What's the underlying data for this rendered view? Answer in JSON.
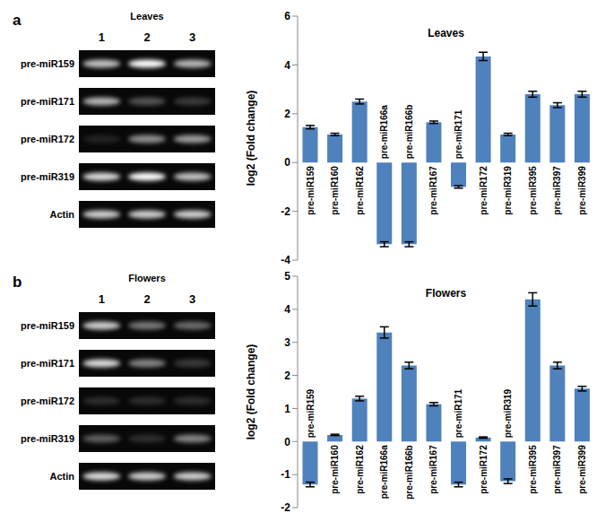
{
  "panel_labels": [
    "a",
    "b"
  ],
  "gels": [
    {
      "title": "Leaves",
      "lanes": [
        "1",
        "2",
        "3"
      ],
      "rows": [
        {
          "label": "pre-miR159",
          "intensity": [
            0.75,
            1,
            0.7
          ]
        },
        {
          "label": "pre-miR171",
          "intensity": [
            0.7,
            0.3,
            0.2
          ]
        },
        {
          "label": "pre-miR172",
          "intensity": [
            0.1,
            0.55,
            0.6
          ]
        },
        {
          "label": "pre-miR319",
          "intensity": [
            0.85,
            1,
            0.75
          ]
        },
        {
          "label": "Actin",
          "intensity": [
            0.8,
            0.8,
            0.8
          ]
        }
      ]
    },
    {
      "title": "Flowers",
      "lanes": [
        "1",
        "2",
        "3"
      ],
      "rows": [
        {
          "label": "pre-miR159",
          "intensity": [
            0.8,
            0.45,
            0.4
          ]
        },
        {
          "label": "pre-miR171",
          "intensity": [
            0.85,
            0.5,
            0.2
          ]
        },
        {
          "label": "pre-miR172",
          "intensity": [
            0.15,
            0.15,
            0.15
          ]
        },
        {
          "label": "pre-miR319",
          "intensity": [
            0.35,
            0.15,
            0.5
          ]
        },
        {
          "label": "Actin",
          "intensity": [
            0.85,
            0.8,
            0.8
          ]
        }
      ]
    }
  ],
  "chart_data": [
    {
      "type": "bar",
      "title": "Leaves",
      "y_label": "log2 (Fold change)",
      "categories": [
        "pre-miR159",
        "pre-miR160",
        "pre-miR162",
        "pre-miR166a",
        "pre-miR166b",
        "pre-miR167",
        "pre-miR171",
        "pre-miR172",
        "pre-miR319",
        "pre-miR395",
        "pre-miR397",
        "pre-miR399"
      ],
      "values": [
        1.45,
        1.15,
        2.5,
        -3.35,
        -3.35,
        1.65,
        -1.0,
        4.35,
        1.15,
        2.8,
        2.35,
        2.8
      ],
      "errors": [
        0.07,
        0.05,
        0.1,
        0.1,
        0.1,
        0.05,
        0.05,
        0.17,
        0.05,
        0.12,
        0.1,
        0.12
      ],
      "color": "#4f81bd",
      "ylim": [
        -4,
        6
      ],
      "yticks": [
        -4,
        -2,
        0,
        2,
        4,
        6
      ],
      "grid": false
    },
    {
      "type": "bar",
      "title": "Flowers",
      "y_label": "log2 (Fold change)",
      "categories": [
        "pre-miR159",
        "pre-miR160",
        "pre-miR162",
        "pre-miR166a",
        "pre-miR166b",
        "pre-miR167",
        "pre-miR171",
        "pre-miR172",
        "pre-miR319",
        "pre-miR395",
        "pre-miR397",
        "pre-miR399"
      ],
      "values": [
        -1.3,
        0.2,
        1.3,
        3.3,
        2.3,
        1.13,
        -1.3,
        0.12,
        -1.2,
        4.3,
        2.3,
        1.6
      ],
      "errors": [
        0.07,
        0.02,
        0.07,
        0.17,
        0.1,
        0.05,
        0.07,
        0.02,
        0.07,
        0.2,
        0.1,
        0.07
      ],
      "color": "#4f81bd",
      "ylim": [
        -2,
        5
      ],
      "yticks": [
        -2,
        -1,
        0,
        1,
        2,
        3,
        4,
        5
      ],
      "grid": false
    }
  ]
}
